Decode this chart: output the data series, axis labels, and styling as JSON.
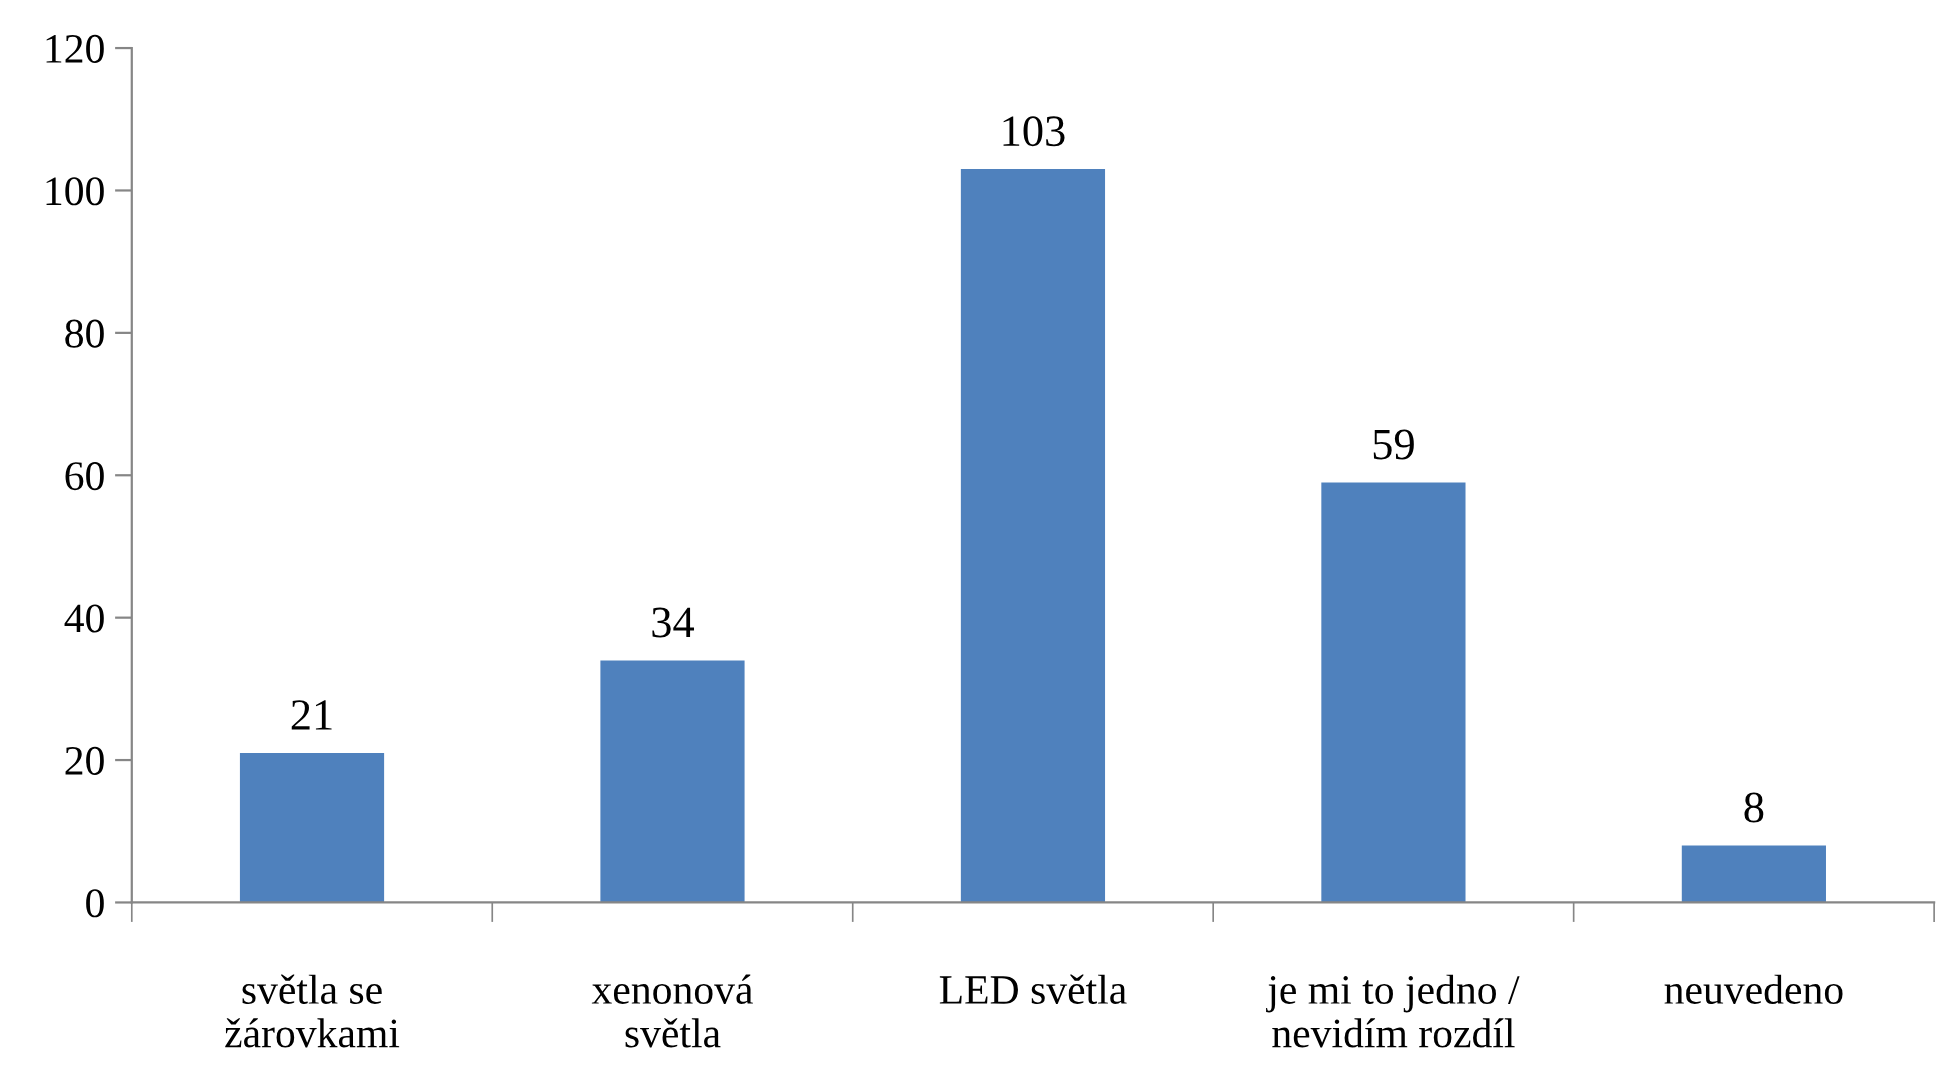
{
  "chart_data": {
    "type": "bar",
    "categories": [
      "světla se\nžárovkami",
      "xenonová\nsvětla",
      "LED světla",
      "je mi to jedno /\nnevidím rozdíl",
      "neuvedeno"
    ],
    "values": [
      21,
      34,
      103,
      59,
      8
    ],
    "color": "#4f81bd",
    "ylim": [
      0,
      120
    ],
    "yticks": [
      0,
      20,
      40,
      60,
      80,
      100,
      120
    ],
    "grid": false,
    "data_labels": true
  }
}
